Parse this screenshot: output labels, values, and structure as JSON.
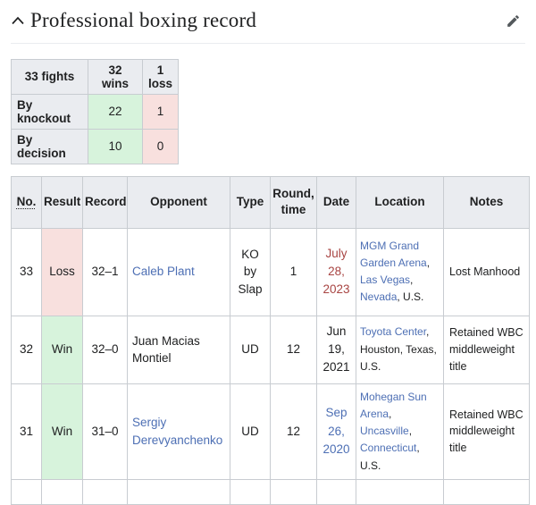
{
  "header": {
    "title": "Professional boxing record"
  },
  "summary_table": {
    "headers": [
      "33 fights",
      "32 wins",
      "1 loss"
    ],
    "rows": [
      {
        "label": "By knockout",
        "wins": "22",
        "losses": "1"
      },
      {
        "label": "By decision",
        "wins": "10",
        "losses": "0"
      }
    ]
  },
  "record_table": {
    "headers": {
      "no": "No.",
      "result": "Result",
      "record": "Record",
      "opponent": "Opponent",
      "type": "Type",
      "round": "Round, time",
      "date": "Date",
      "location": "Location",
      "notes": "Notes"
    },
    "rows": [
      {
        "no": "33",
        "result": "Loss",
        "record": "32–1",
        "opponent": "Caleb Plant",
        "type": "KO by Slap",
        "round": "1",
        "date": "July 28, 2023",
        "location_parts": [
          {
            "text": "MGM Grand Garden Arena",
            "link": true
          },
          {
            "text": ", ",
            "link": false
          },
          {
            "text": "Las Vegas",
            "link": true
          },
          {
            "text": ", ",
            "link": false
          },
          {
            "text": "Nevada",
            "link": true
          },
          {
            "text": ", U.S.",
            "link": false
          }
        ],
        "notes": "Lost Manhood"
      },
      {
        "no": "32",
        "result": "Win",
        "record": "32–0",
        "opponent": "Juan Macias Montiel",
        "type": "UD",
        "round": "12",
        "date": "Jun 19, 2021",
        "location_parts": [
          {
            "text": "Toyota Center",
            "link": true
          },
          {
            "text": ", Houston, Texas, U.S.",
            "link": false
          }
        ],
        "notes": "Retained WBC middleweight title"
      },
      {
        "no": "31",
        "result": "Win",
        "record": "31–0",
        "opponent": "Sergiy Derevyanchenko",
        "type": "UD",
        "round": "12",
        "date": "Sep 26, 2020",
        "location_parts": [
          {
            "text": "Mohegan Sun Arena",
            "link": true
          },
          {
            "text": ", ",
            "link": false
          },
          {
            "text": "Uncasville",
            "link": true
          },
          {
            "text": ", ",
            "link": false
          },
          {
            "text": "Connecticut",
            "link": true
          },
          {
            "text": ", U.S.",
            "link": false
          }
        ],
        "notes": "Retained WBC middleweight title"
      }
    ]
  },
  "colors": {
    "win_bg": "#d7f3dc",
    "loss_bg": "#f8e0de",
    "table_header_bg": "#eaecf0",
    "border": "#c8ccd1",
    "link_blue": "#4d6fb4",
    "red_link": "#a84442",
    "text": "#202122",
    "icon_gray": "#54595d"
  }
}
